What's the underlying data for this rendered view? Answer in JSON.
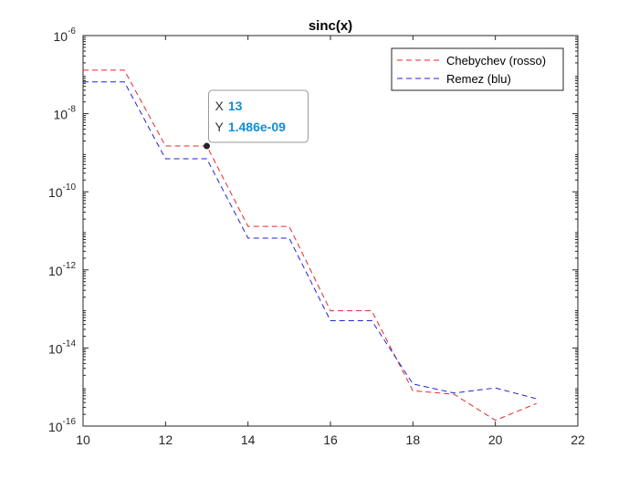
{
  "chart_data": {
    "type": "line",
    "title": "sinc(x)",
    "xlabel": "",
    "ylabel": "",
    "xscale": "linear",
    "yscale": "log",
    "xlim": [
      10,
      22
    ],
    "ylim": [
      1e-16,
      1e-06
    ],
    "grid": false,
    "legend_position": "top-right",
    "x_ticks": [
      10,
      12,
      14,
      16,
      18,
      20,
      22
    ],
    "x_tick_labels": [
      "10",
      "12",
      "14",
      "16",
      "18",
      "20",
      "22"
    ],
    "y_ticks": [
      1e-16,
      1e-14,
      1e-12,
      1e-10,
      1e-08,
      1e-06
    ],
    "y_tick_labels": [
      {
        "base": "10",
        "exp": "-16"
      },
      {
        "base": "10",
        "exp": "-14"
      },
      {
        "base": "10",
        "exp": "-12"
      },
      {
        "base": "10",
        "exp": "-10"
      },
      {
        "base": "10",
        "exp": "-8"
      },
      {
        "base": "10",
        "exp": "-6"
      }
    ],
    "series": [
      {
        "name": "Chebychev (rosso)",
        "color": "#e8262a",
        "line_style": "dashed",
        "x": [
          10,
          11,
          12,
          13,
          14,
          15,
          16,
          17,
          18,
          19,
          20,
          21
        ],
        "y": [
          1.3e-07,
          1.3e-07,
          1.486e-09,
          1.486e-09,
          1.3e-11,
          1.3e-11,
          9e-14,
          9e-14,
          8e-16,
          6.5e-16,
          1.4e-16,
          3.8e-16
        ]
      },
      {
        "name": "Remez (blu)",
        "color": "#2222d4",
        "line_style": "dashed",
        "x": [
          10,
          11,
          12,
          13,
          14,
          15,
          16,
          17,
          18,
          19,
          20,
          21
        ],
        "y": [
          6.5e-08,
          6.5e-08,
          7e-10,
          7e-10,
          6.5e-12,
          6.5e-12,
          5e-14,
          5e-14,
          1.2e-15,
          7e-16,
          9.5e-16,
          5e-16
        ]
      }
    ],
    "datatip": {
      "x": 13,
      "y": 1.486e-09,
      "x_label": "X",
      "y_label": "Y",
      "x_text": "13",
      "y_text": "1.486e-09",
      "value_color": "#0e8fd8"
    }
  }
}
